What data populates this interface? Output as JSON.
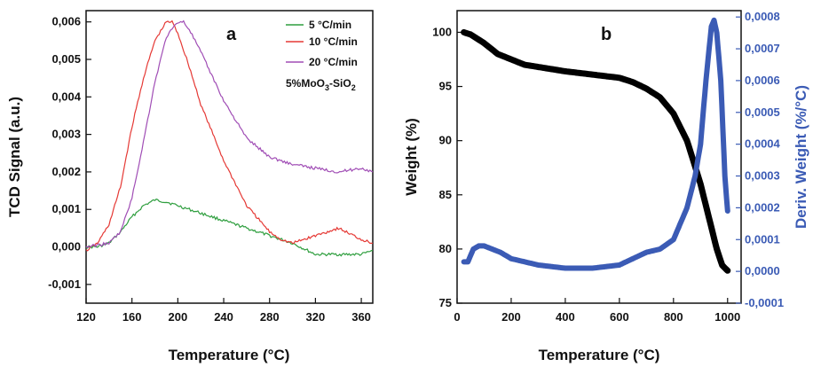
{
  "chart_data": [
    {
      "type": "line",
      "panel_label": "a",
      "xlabel": "Temperature (°C)",
      "ylabel": "TCD Signal (a.u.)",
      "xlim": [
        120,
        370
      ],
      "ylim": [
        -0.0015,
        0.0063
      ],
      "xticks": [
        120,
        160,
        200,
        240,
        280,
        320,
        360
      ],
      "yticks": [
        -0.001,
        0,
        0.001,
        0.002,
        0.003,
        0.004,
        0.005,
        0.006
      ],
      "ytick_labels": [
        "-0,001",
        "0,000",
        "0,001",
        "0,002",
        "0,003",
        "0,004",
        "0,005",
        "0,006"
      ],
      "annotation": "5%MoO3-SiO2",
      "annotation_parts": {
        "a": "5%MoO",
        "b": "3",
        "c": "-SiO",
        "d": "2"
      },
      "legend_position": "top-right",
      "series": [
        {
          "name": "5 °C/min",
          "color": "#2e9e3e",
          "x": [
            120,
            130,
            140,
            150,
            160,
            170,
            180,
            190,
            200,
            210,
            220,
            240,
            260,
            280,
            300,
            320,
            340,
            360,
            370
          ],
          "y": [
            0.0,
            0.0,
            0.0001,
            0.0004,
            0.0008,
            0.0011,
            0.00125,
            0.0012,
            0.0011,
            0.001,
            0.0009,
            0.0007,
            0.0005,
            0.0003,
            0.0001,
            -0.0002,
            -0.0002,
            -0.0002,
            -0.0001
          ]
        },
        {
          "name": "10 °C/min",
          "color": "#e53935",
          "x": [
            120,
            130,
            140,
            150,
            160,
            170,
            180,
            190,
            195,
            200,
            210,
            220,
            240,
            260,
            280,
            290,
            300,
            320,
            340,
            360,
            370
          ],
          "y": [
            -0.0001,
            0.0001,
            0.0006,
            0.0016,
            0.0032,
            0.0045,
            0.0055,
            0.006,
            0.006,
            0.0057,
            0.0048,
            0.0038,
            0.0023,
            0.0011,
            0.0004,
            0.0002,
            0.0001,
            0.0003,
            0.0005,
            0.0002,
            0.0001
          ]
        },
        {
          "name": "20 °C/min",
          "color": "#a04db5",
          "x": [
            120,
            140,
            150,
            160,
            170,
            180,
            190,
            200,
            205,
            210,
            220,
            240,
            260,
            280,
            300,
            320,
            340,
            360,
            370
          ],
          "y": [
            0.0,
            0.0001,
            0.0004,
            0.0013,
            0.0028,
            0.0044,
            0.0056,
            0.006,
            0.006,
            0.0058,
            0.0052,
            0.0039,
            0.0029,
            0.0024,
            0.0022,
            0.0021,
            0.002,
            0.0021,
            0.002
          ]
        }
      ]
    },
    {
      "type": "line",
      "panel_label": "b",
      "xlabel": "Temperature (°C)",
      "ylabel": "Weight (%)",
      "ylabel_right": "Deriv. Weight (%/°C)",
      "xlim": [
        0,
        1050
      ],
      "ylim": [
        75,
        102
      ],
      "ylim_right": [
        -0.0001,
        0.00082
      ],
      "xticks": [
        0,
        200,
        400,
        600,
        800,
        1000
      ],
      "yticks": [
        75,
        80,
        85,
        90,
        95,
        100
      ],
      "yticks_right": [
        -0.0001,
        0.0,
        0.0001,
        0.0002,
        0.0003,
        0.0004,
        0.0005,
        0.0006,
        0.0007,
        0.0008
      ],
      "ytick_labels_right": [
        "-0,0001",
        "0,0000",
        "0,0001",
        "0,0002",
        "0,0003",
        "0,0004",
        "0,0005",
        "0,0006",
        "0,0007",
        "0,0008"
      ],
      "series": [
        {
          "axis": "left",
          "color": "#000000",
          "x": [
            25,
            50,
            100,
            150,
            200,
            250,
            300,
            400,
            500,
            600,
            650,
            700,
            750,
            800,
            850,
            900,
            930,
            960,
            980,
            1000
          ],
          "y": [
            100,
            99.8,
            99,
            98,
            97.5,
            97,
            96.8,
            96.4,
            96.1,
            95.8,
            95.4,
            94.8,
            94,
            92.5,
            90,
            86,
            83,
            80,
            78.5,
            78
          ]
        },
        {
          "axis": "right",
          "color": "#3b5bb5",
          "x": [
            25,
            40,
            60,
            80,
            100,
            130,
            160,
            200,
            300,
            400,
            500,
            600,
            650,
            700,
            750,
            800,
            850,
            880,
            900,
            920,
            940,
            950,
            960,
            975,
            990,
            1000
          ],
          "y": [
            3e-05,
            3e-05,
            7e-05,
            8e-05,
            8e-05,
            7e-05,
            6e-05,
            4e-05,
            2e-05,
            1e-05,
            1e-05,
            2e-05,
            4e-05,
            6e-05,
            7e-05,
            0.0001,
            0.0002,
            0.0003,
            0.0004,
            0.0006,
            0.00077,
            0.00079,
            0.00075,
            0.0006,
            0.0003,
            0.00019
          ]
        }
      ]
    }
  ]
}
